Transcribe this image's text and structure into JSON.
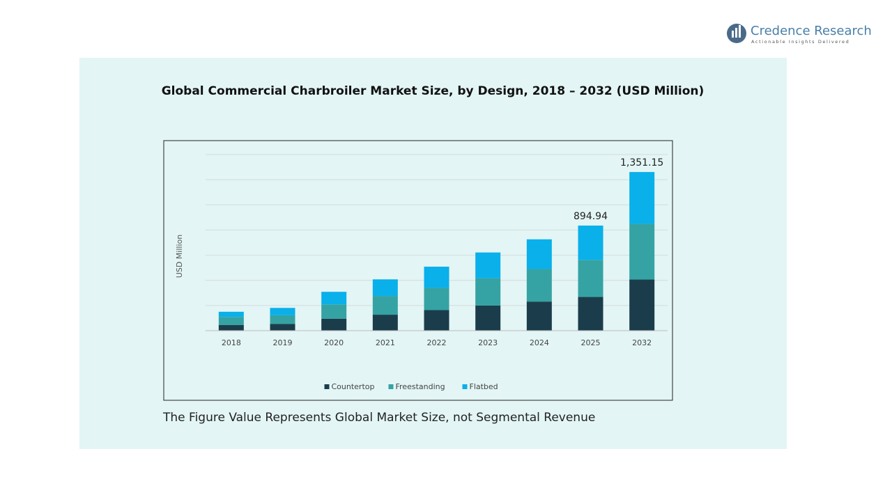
{
  "logo": {
    "name": "Credence Research",
    "tagline": "Actionable Insights Delivered"
  },
  "chart_data": {
    "type": "stacked-bar",
    "title": "Global Commercial Charbroiler Market Size, by Design, 2018 – 2032 (USD Million)",
    "y_label": "USD Million",
    "categories": [
      "2018",
      "2019",
      "2020",
      "2021",
      "2022",
      "2023",
      "2024",
      "2025",
      "2032"
    ],
    "series": [
      {
        "name": "Countertop",
        "color": "#1b3d4b",
        "values": [
          49,
          58,
          102,
          136,
          175,
          214,
          248,
          287.2,
          435.5
        ]
      },
      {
        "name": "Freestanding",
        "color": "#35a3a3",
        "values": [
          68,
          73,
          122,
          160,
          190,
          233,
          277,
          315.9,
          474.2
        ]
      },
      {
        "name": "Flatbed",
        "color": "#0ab0ea",
        "values": [
          44,
          63,
          107,
          141,
          180,
          219,
          253,
          291.84,
          441.45
        ]
      }
    ],
    "totals": [
      null,
      null,
      null,
      null,
      null,
      null,
      null,
      894.94,
      1351.15
    ],
    "total_labels": [
      null,
      null,
      null,
      null,
      null,
      null,
      null,
      "894.94",
      "1,351.15"
    ],
    "ylim": [
      0,
      1500
    ],
    "grid": true,
    "legend": "bottom",
    "footnote": "The Figure Value Represents Global Market Size, not Segmental Revenue"
  }
}
